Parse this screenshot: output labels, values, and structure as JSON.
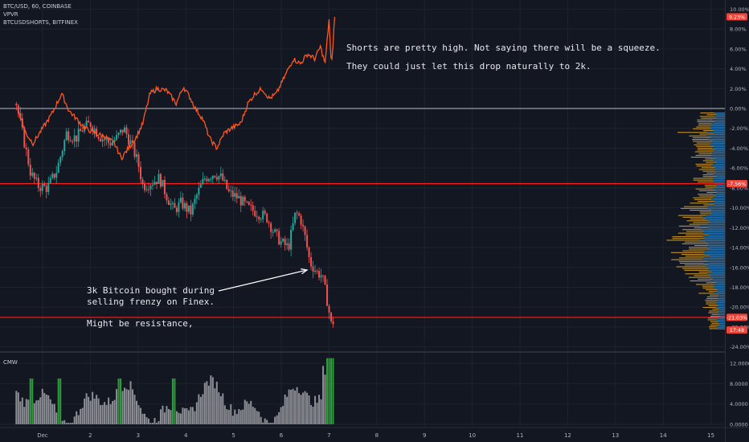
{
  "header": {
    "symbol_line": "BTC/USD, 60, COINBASE",
    "indicator_1": "VPVR",
    "indicator_2": "BTCUSDSHORTS, BITFINEX"
  },
  "notes": {
    "top_line_1": "Shorts are pretty high. Not saying there will be a squeeze.",
    "top_line_2": "They could just let this drop naturally to 2k.",
    "bottom_line_1": "3k Bitcoin bought during",
    "bottom_line_2": "selling frenzy on Finex.",
    "bottom_line_3": "Might be resistance,"
  },
  "colors": {
    "background": "#131722",
    "grid": "#1f2330",
    "candle_up": "#26a69a",
    "candle_down": "#ef5350",
    "shorts_line": "#ff5722",
    "hline_red": "#ff1e1e",
    "zero_line": "#b8bcc8",
    "vpvr_blue": "#2a7fc1",
    "vpvr_orange": "#d6a12b",
    "cmw_gray": "#8d8f95",
    "cmw_green": "#2e9e3a",
    "badge_red": "#f04438"
  },
  "chart_data": [
    {
      "type": "candlestick",
      "x_axis_labels": [
        "Dec",
        "2",
        "3",
        "4",
        "5",
        "6",
        "7",
        "8",
        "9",
        "10",
        "11",
        "12",
        "13",
        "14",
        "15"
      ],
      "y_axis_labels": [
        "10.00%",
        "8.00%",
        "6.00%",
        "4.00%",
        "2.00%",
        "0.00%",
        "-2.00%",
        "-4.00%",
        "-6.00%",
        "-8.00%",
        "-10.00%",
        "-12.00%",
        "-14.00%",
        "-16.00%",
        "-18.00%",
        "-20.00%",
        "-22.00%",
        "-24.00%"
      ],
      "ylim": [
        -24,
        10
      ],
      "y_unit": "%",
      "xlim_days": [
        0.5,
        15.2
      ],
      "series": [
        {
          "name": "BTC/USD, 60, COINBASE",
          "day_close": [
            [
              0.45,
              0.5
            ],
            [
              0.6,
              -3
            ],
            [
              0.75,
              -6.5
            ],
            [
              0.9,
              -7.8
            ],
            [
              1.1,
              -8.0
            ],
            [
              1.3,
              -6.2
            ],
            [
              1.5,
              -2.5
            ],
            [
              1.7,
              -3.0
            ],
            [
              1.85,
              -2.0
            ],
            [
              2.0,
              -1.5
            ],
            [
              2.2,
              -2.8
            ],
            [
              2.4,
              -3.5
            ],
            [
              2.55,
              -3.0
            ],
            [
              2.7,
              -2.0
            ],
            [
              2.85,
              -3.5
            ],
            [
              3.0,
              -5.5
            ],
            [
              3.1,
              -7.8
            ],
            [
              3.25,
              -7.5
            ],
            [
              3.45,
              -7.0
            ],
            [
              3.6,
              -8.8
            ],
            [
              3.75,
              -10.3
            ],
            [
              3.9,
              -9.5
            ],
            [
              4.1,
              -10.5
            ],
            [
              4.25,
              -8.5
            ],
            [
              4.4,
              -7.0
            ],
            [
              4.6,
              -6.5
            ],
            [
              4.75,
              -7.0
            ],
            [
              4.9,
              -8.5
            ],
            [
              5.1,
              -9.0
            ],
            [
              5.3,
              -10.0
            ],
            [
              5.5,
              -10.5
            ],
            [
              5.7,
              -11.0
            ],
            [
              5.85,
              -12.5
            ],
            [
              6.0,
              -13.5
            ],
            [
              6.15,
              -14.0
            ],
            [
              6.3,
              -10.5
            ],
            [
              6.4,
              -11.0
            ],
            [
              6.5,
              -13.0
            ],
            [
              6.6,
              -15.5
            ],
            [
              6.75,
              -16.5
            ],
            [
              6.85,
              -16.8
            ],
            [
              6.95,
              -19.0
            ],
            [
              7.05,
              -21.9
            ],
            [
              7.1,
              -21.3
            ]
          ]
        },
        {
          "name": "BTCUSDSHORTS, BITFINEX",
          "day_value": [
            [
              0.5,
              -0.3
            ],
            [
              0.65,
              -2.5
            ],
            [
              0.8,
              -3.5
            ],
            [
              1.0,
              -2.0
            ],
            [
              1.2,
              -0.5
            ],
            [
              1.4,
              1.5
            ],
            [
              1.55,
              -0.2
            ],
            [
              1.7,
              -1.0
            ],
            [
              1.9,
              -2.0
            ],
            [
              2.1,
              -2.5
            ],
            [
              2.3,
              -2.8
            ],
            [
              2.5,
              -3.5
            ],
            [
              2.65,
              -5.0
            ],
            [
              2.8,
              -4.0
            ],
            [
              2.95,
              -3.0
            ],
            [
              3.1,
              -1.5
            ],
            [
              3.25,
              1.5
            ],
            [
              3.4,
              2.0
            ],
            [
              3.6,
              1.8
            ],
            [
              3.8,
              0.5
            ],
            [
              3.95,
              2.2
            ],
            [
              4.1,
              1.0
            ],
            [
              4.2,
              0.0
            ],
            [
              4.35,
              -1.0
            ],
            [
              4.5,
              -3.0
            ],
            [
              4.65,
              -4.0
            ],
            [
              4.8,
              -2.5
            ],
            [
              4.95,
              -2.0
            ],
            [
              5.15,
              -1.5
            ],
            [
              5.3,
              0.5
            ],
            [
              5.45,
              1.5
            ],
            [
              5.6,
              2.0
            ],
            [
              5.75,
              1.0
            ],
            [
              5.9,
              1.5
            ],
            [
              6.0,
              2.5
            ],
            [
              6.1,
              3.5
            ],
            [
              6.25,
              5.0
            ],
            [
              6.4,
              4.5
            ],
            [
              6.55,
              5.5
            ],
            [
              6.7,
              5.0
            ],
            [
              6.82,
              6.2
            ],
            [
              6.92,
              4.5
            ],
            [
              7.0,
              9.0
            ],
            [
              7.05,
              4.0
            ],
            [
              7.12,
              9.3
            ]
          ]
        }
      ],
      "price_labels": [
        {
          "label": "9.23%",
          "value": 9.23,
          "series": "BTCUSDSHORTS, BITFINEX"
        },
        {
          "label": "-7.56%",
          "value": -7.56
        },
        {
          "label": "-21.03%",
          "value": -21.03,
          "series": "BTC/USD, 60, COINBASE"
        },
        {
          "label": "17:48",
          "value": -22.3
        }
      ],
      "horizontal_lines": [
        {
          "value": 0,
          "color": "#b8bcc8"
        },
        {
          "value": -7.56,
          "color": "#ff1e1e"
        },
        {
          "value": -21.03,
          "color": "#ff1e1e"
        }
      ],
      "vpvr": {
        "present": true,
        "note": "volume profile visible range on right edge, blue and orange bars"
      }
    },
    {
      "type": "bar",
      "indicator_label": "CMW",
      "y_axis_labels": [
        "12.0000",
        "8.0000",
        "4.0000",
        "0.0000"
      ],
      "ylim": [
        0,
        13.5
      ],
      "green_bar_days": [
        0.75,
        1.35,
        2.6,
        3.75,
        7.0,
        7.1
      ]
    }
  ]
}
